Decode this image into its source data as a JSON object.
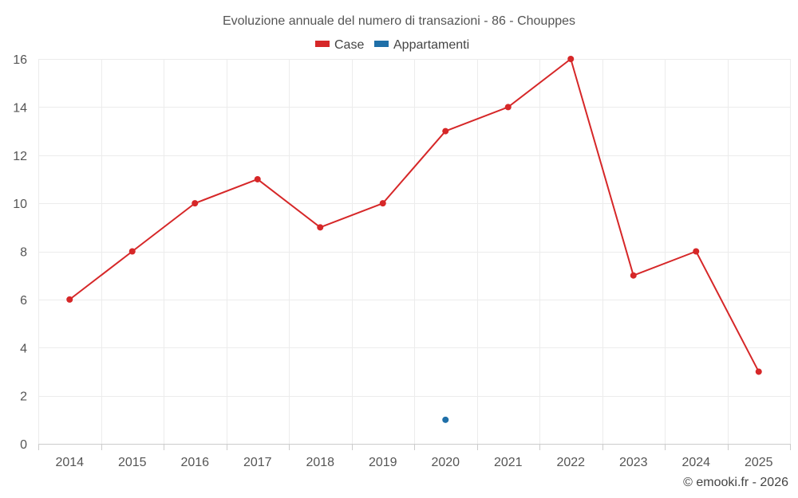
{
  "chart_data": {
    "type": "line",
    "title": "Evoluzione annuale del numero di transazioni - 86 - Chouppes",
    "categories": [
      "2014",
      "2015",
      "2016",
      "2017",
      "2018",
      "2019",
      "2020",
      "2021",
      "2022",
      "2023",
      "2024",
      "2025"
    ],
    "series": [
      {
        "name": "Case",
        "color": "#d62728",
        "values": [
          6,
          8,
          10,
          11,
          9,
          10,
          13,
          14,
          16,
          7,
          8,
          3
        ]
      },
      {
        "name": "Appartamenti",
        "color": "#1f6fa8",
        "values": [
          null,
          null,
          null,
          null,
          null,
          null,
          1,
          null,
          null,
          null,
          null,
          null
        ]
      }
    ],
    "ylim": [
      0,
      16
    ],
    "yticks": [
      0,
      2,
      4,
      6,
      8,
      10,
      12,
      14,
      16
    ],
    "grid": true,
    "legend": "top-center",
    "xlabel": "",
    "ylabel": ""
  },
  "credit": "© emooki.fr - 2026"
}
